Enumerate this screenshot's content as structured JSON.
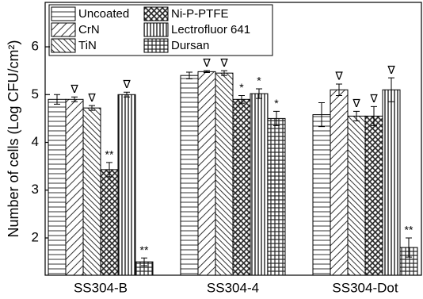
{
  "chart_data": {
    "type": "bar",
    "y_label": "Number of cells (Log CFU/cm²)",
    "categories": [
      "SS304-B",
      "SS304-4",
      "SS304-Dot"
    ],
    "ylim": [
      1.22,
      6.93
    ],
    "yticks": [
      2,
      3,
      4,
      5,
      6
    ],
    "series": [
      {
        "name": "Uncoated",
        "color": "#000000",
        "pattern": "horizontal",
        "values": [
          4.9,
          5.4,
          4.58
        ],
        "errors": [
          0.1,
          0.07,
          0.25
        ],
        "significance": [
          null,
          null,
          null
        ]
      },
      {
        "name": "CrN",
        "color": "#000000",
        "pattern": "forward-diagonal",
        "values": [
          4.9,
          5.48,
          5.1
        ],
        "errors": [
          0.05,
          0.02,
          0.12
        ],
        "significance": [
          "∇",
          "∇",
          "∇"
        ]
      },
      {
        "name": "TiN",
        "color": "#000000",
        "pattern": "backward-diagonal",
        "values": [
          4.72,
          5.45,
          4.55
        ],
        "errors": [
          0.05,
          0.05,
          0.1
        ],
        "significance": [
          "∇",
          "∇",
          "∇"
        ]
      },
      {
        "name": "Ni-P-PTFE",
        "color": "#000000",
        "pattern": "crosshatch",
        "values": [
          3.43,
          4.9,
          4.55
        ],
        "errors": [
          0.15,
          0.08,
          0.2
        ],
        "significance": [
          "**",
          "*",
          "∇"
        ]
      },
      {
        "name": "Lectrofluor 641",
        "color": "#000000",
        "pattern": "vertical",
        "values": [
          5.0,
          5.02,
          5.1
        ],
        "errors": [
          0.05,
          0.1,
          0.25
        ],
        "significance": [
          "∇",
          "*",
          "∇"
        ]
      },
      {
        "name": "Dursan",
        "color": "#000000",
        "pattern": "grid",
        "values": [
          1.5,
          4.5,
          1.8
        ],
        "errors": [
          0.08,
          0.15,
          0.2
        ],
        "significance": [
          "**",
          "*",
          "**"
        ]
      }
    ]
  }
}
